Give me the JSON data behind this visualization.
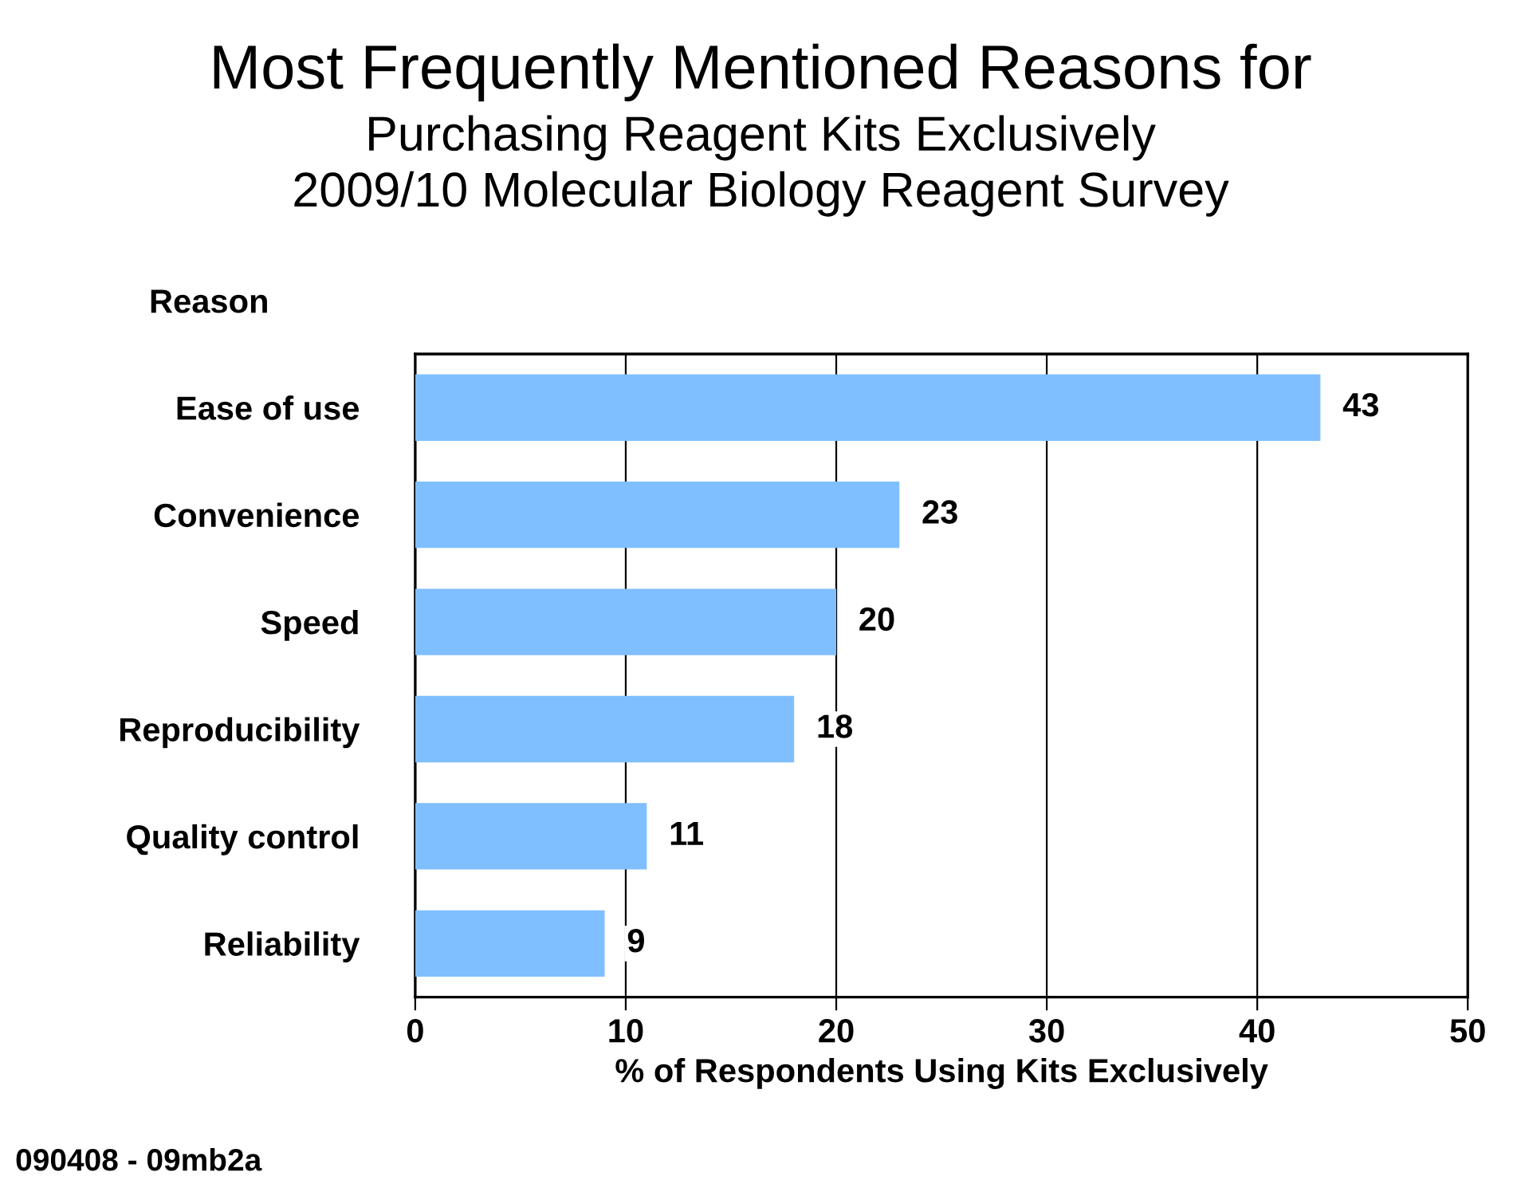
{
  "chart_data": {
    "type": "bar",
    "orientation": "horizontal",
    "title": "Most Frequently Mentioned Reasons for",
    "subtitle": "Purchasing Reagent Kits Exclusively\n2009/10 Molecular Biology Reagent Survey",
    "ylabel": "Reason",
    "xlabel": "% of Respondents Using Kits Exclusively",
    "categories": [
      "Ease of use",
      "Convenience",
      "Speed",
      "Reproducibility",
      "Quality control",
      "Reliability"
    ],
    "values": [
      43,
      23,
      20,
      18,
      11,
      9
    ],
    "color": "#80bfff",
    "data_labels": true,
    "xlim": [
      0,
      50
    ],
    "xticks": [
      0,
      10,
      20,
      30,
      40,
      50
    ],
    "grid": "x",
    "annotations": [
      "090408 - 09mb2a"
    ]
  }
}
